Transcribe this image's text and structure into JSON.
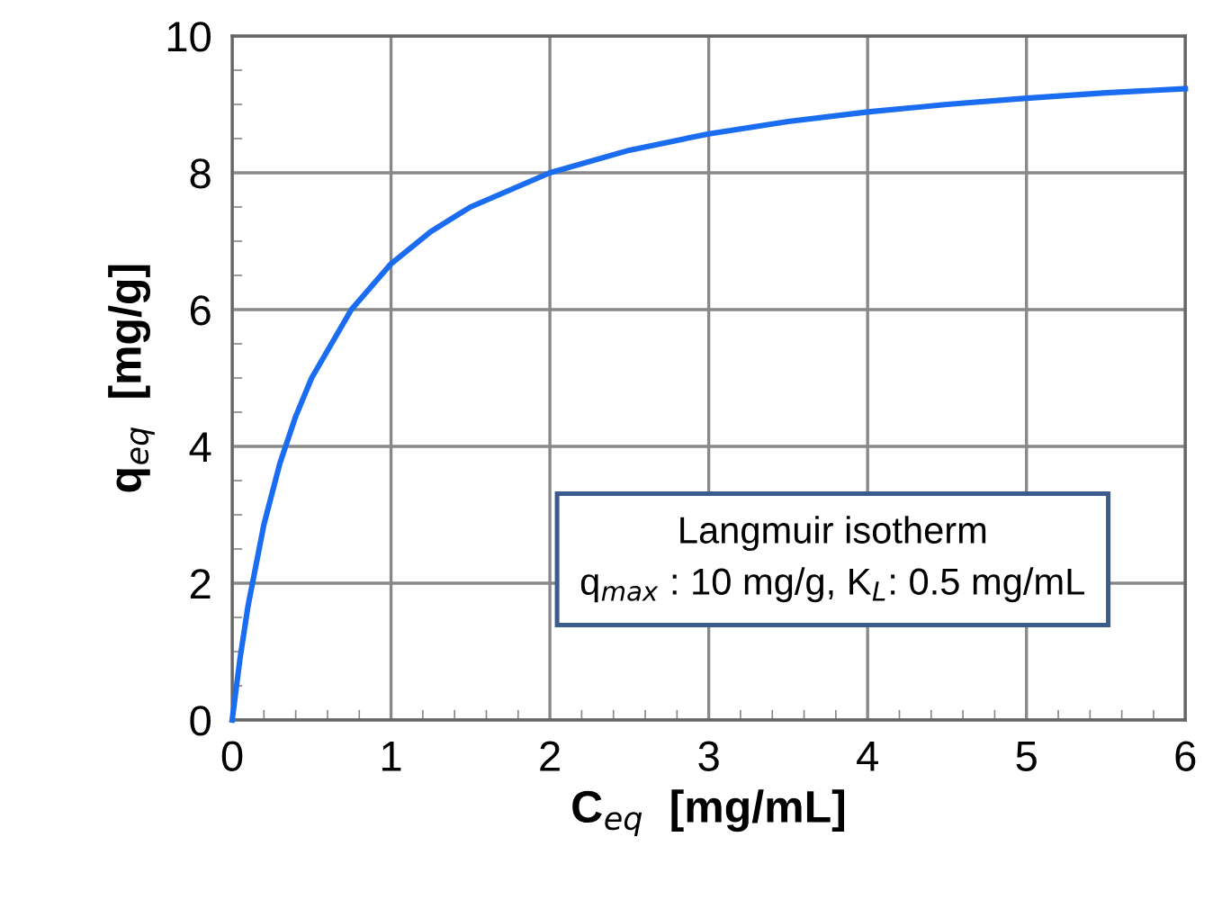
{
  "chart_data": {
    "type": "line",
    "xlabel": "C$_{eq}$  [mg/mL]",
    "ylabel": "q$_{eq}$  [mg/g]",
    "annotations": [
      "Langmuir isotherm\nq$_{max}$ : 10 mg/g, K$_{L}$: 0.5 mg/mL"
    ],
    "series": [
      {
        "color": "#1a6cf0",
        "x": [
          0,
          0.05,
          0.1,
          0.2,
          0.3,
          0.4,
          0.5,
          0.75,
          1,
          1.25,
          1.5,
          2,
          2.5,
          3,
          3.5,
          4,
          4.5,
          5,
          5.5,
          6
        ],
        "values": [
          0,
          0.91,
          1.67,
          2.86,
          3.75,
          4.44,
          5,
          6,
          6.67,
          7.14,
          7.5,
          8,
          8.33,
          8.57,
          8.75,
          8.89,
          9,
          9.09,
          9.17,
          9.23
        ]
      }
    ],
    "xlim": [
      0,
      6
    ],
    "ylim": [
      0,
      10
    ],
    "xticks": [
      0,
      1,
      2,
      3,
      4,
      5,
      6
    ],
    "yticks": [
      0,
      2,
      4,
      6,
      8,
      10
    ],
    "grid": true,
    "legend": false,
    "marker": "none",
    "line_style": "solid"
  }
}
